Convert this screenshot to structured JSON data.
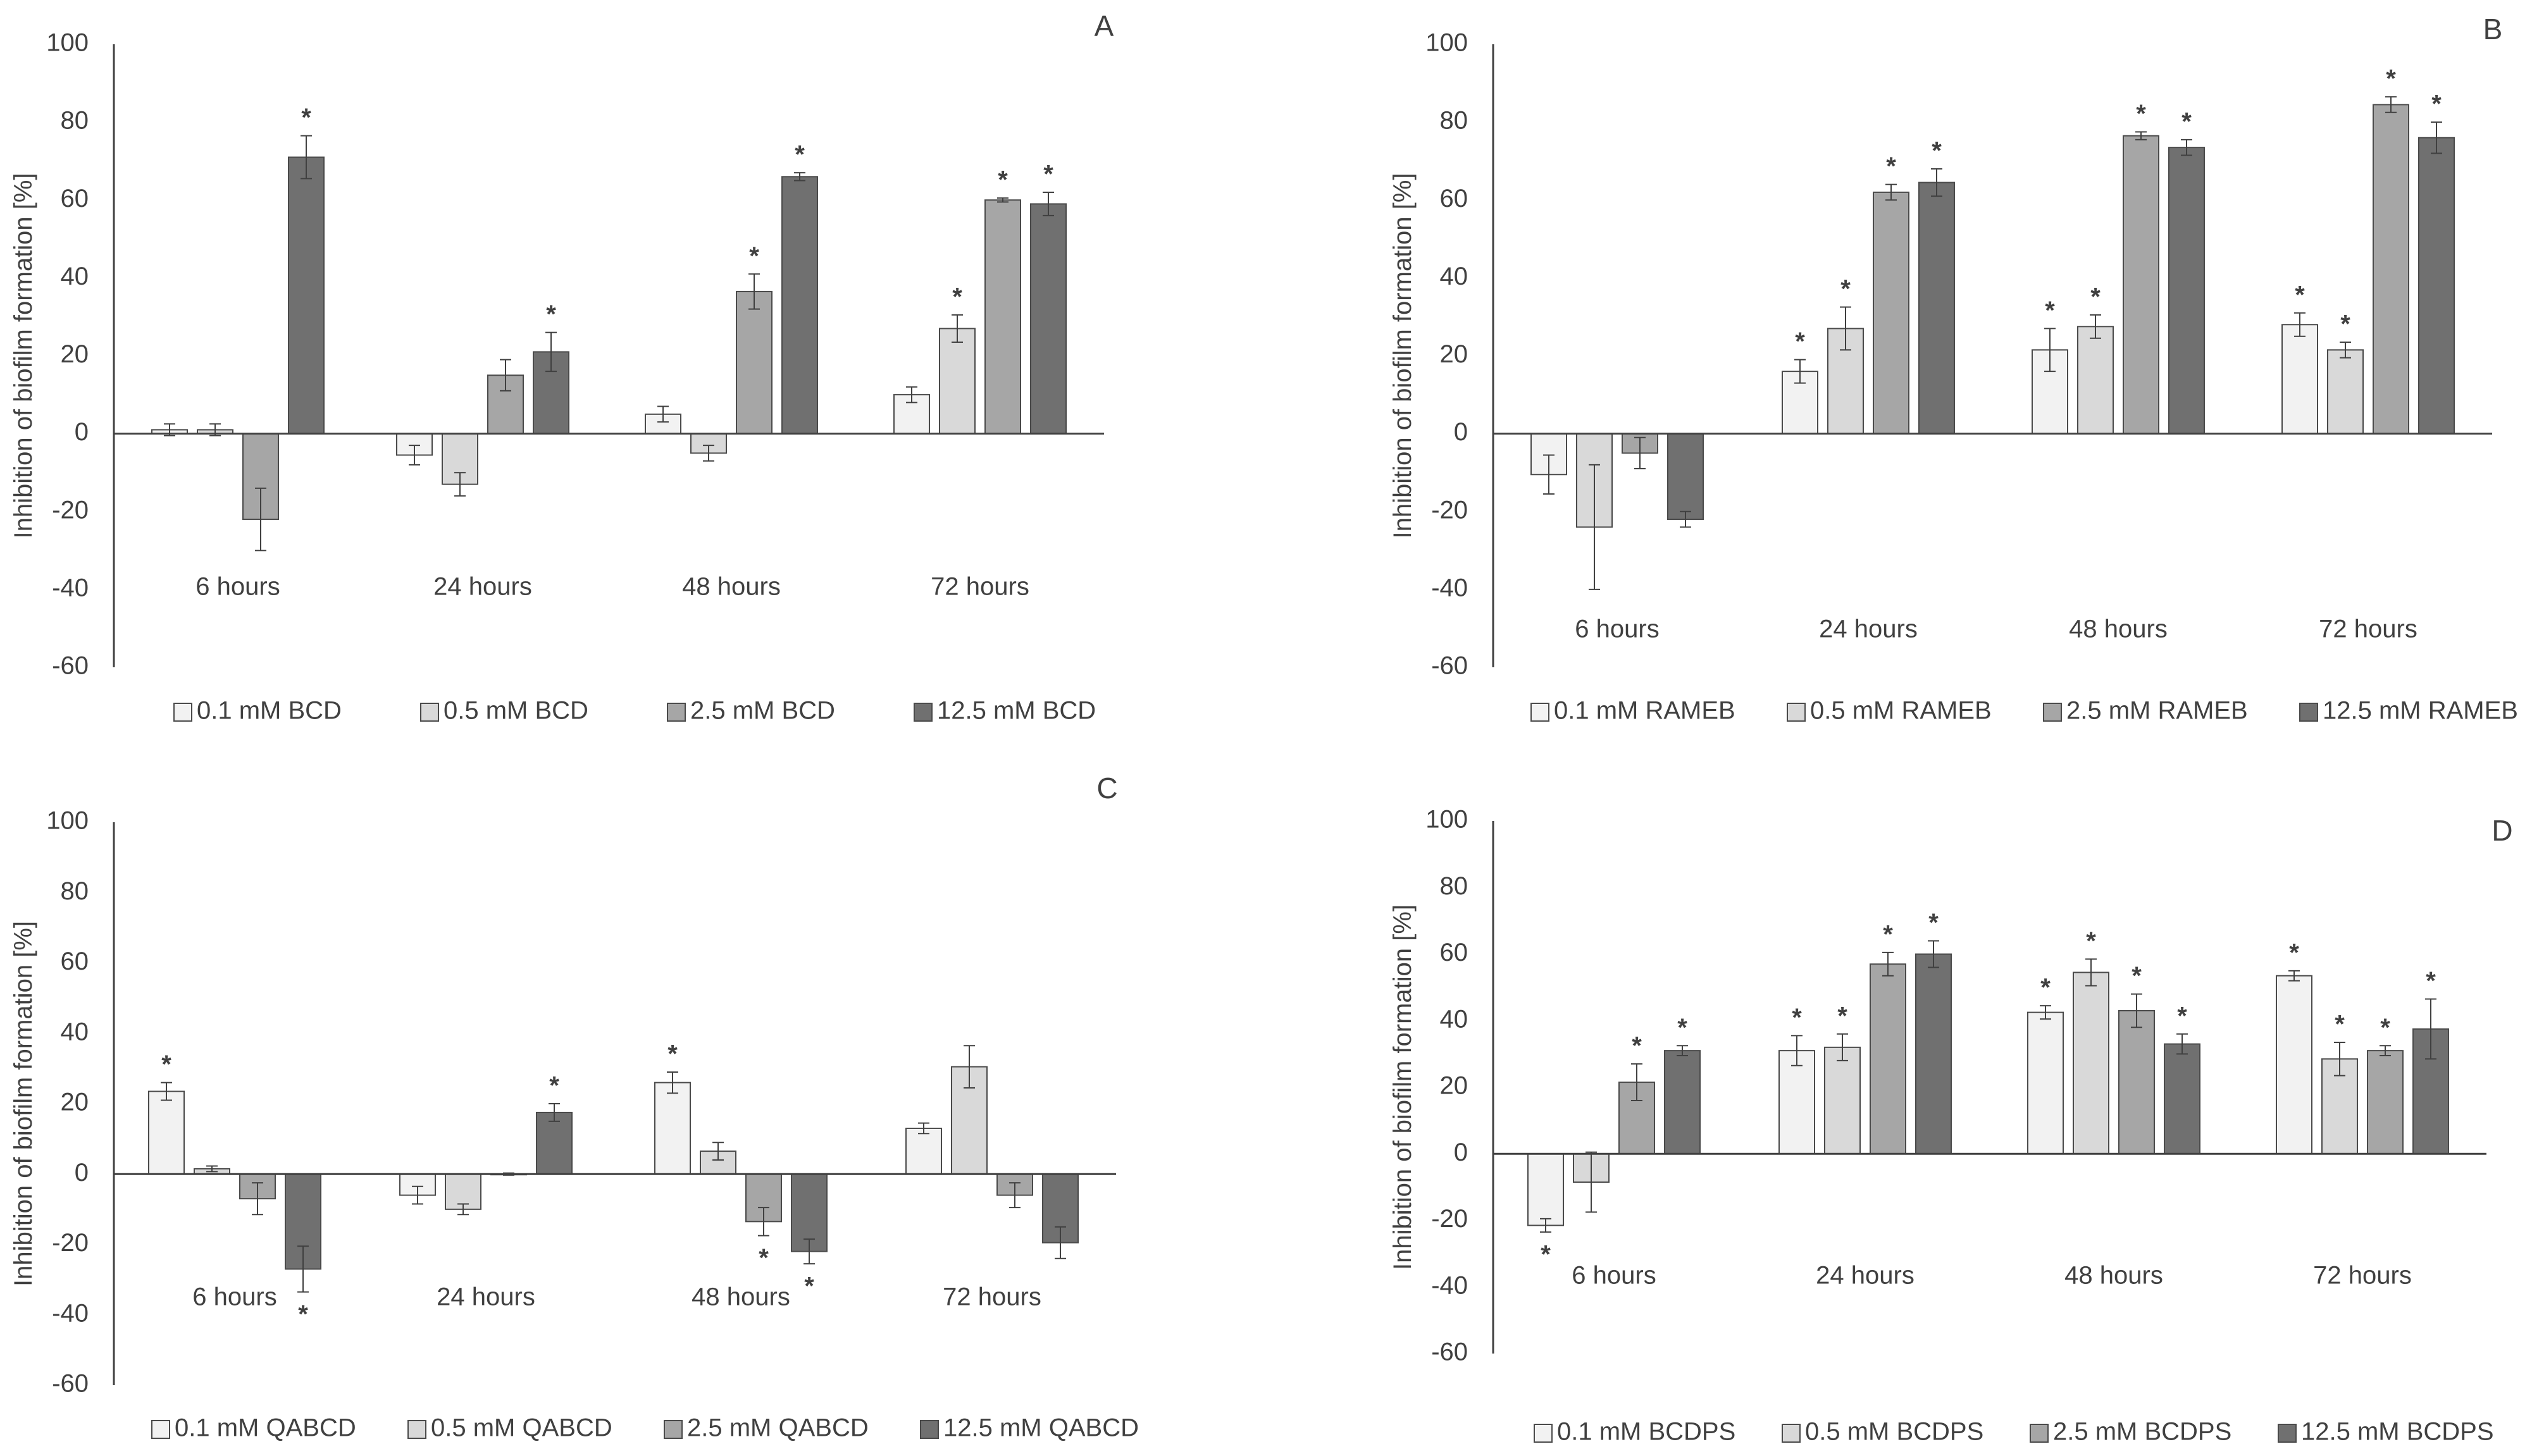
{
  "figure": {
    "colors": [
      "#f2f2f2",
      "#d9d9d9",
      "#a6a6a6",
      "#707070"
    ],
    "axis_color": "#404040",
    "error_color": "#404040"
  },
  "chart_data": [
    {
      "type": "bar",
      "panel_label": "A",
      "ylabel": "Inhibition of biofilm formation [%]",
      "ylim": [
        -60,
        100
      ],
      "yticks": [
        100,
        80,
        60,
        40,
        20,
        0,
        -20,
        -40,
        -60
      ],
      "categories": [
        "6 hours",
        "24 hours",
        "48 hours",
        "72 hours"
      ],
      "series": [
        {
          "name": "0.1 mM BCD",
          "values": [
            1,
            -5.5,
            5,
            10
          ],
          "errors": [
            1.5,
            2.5,
            2,
            2
          ],
          "sig": [
            false,
            false,
            false,
            false
          ]
        },
        {
          "name": "0.5 mM BCD",
          "values": [
            1,
            -13,
            -5,
            27
          ],
          "errors": [
            1.5,
            3,
            2,
            3.5
          ],
          "sig": [
            false,
            false,
            false,
            true
          ]
        },
        {
          "name": "2.5 mM BCD",
          "values": [
            -22,
            15,
            36.5,
            60
          ],
          "errors": [
            8,
            4,
            4.5,
            0.5
          ],
          "sig": [
            false,
            false,
            true,
            true
          ]
        },
        {
          "name": "12.5 mM BCD",
          "values": [
            71,
            21,
            66,
            59
          ],
          "errors": [
            5.5,
            5,
            1,
            3
          ],
          "sig": [
            true,
            true,
            true,
            true
          ]
        }
      ],
      "legend_position": "bottom"
    },
    {
      "type": "bar",
      "panel_label": "B",
      "ylabel": "Inhibition of biofilm formation [%]",
      "ylim": [
        -60,
        100
      ],
      "yticks": [
        100,
        80,
        60,
        40,
        20,
        0,
        -20,
        -40,
        -60
      ],
      "categories": [
        "6 hours",
        "24 hours",
        "48 hours",
        "72 hours"
      ],
      "series": [
        {
          "name": "0.1 mM RAMEB",
          "values": [
            -10.5,
            16,
            21.5,
            28
          ],
          "errors": [
            5,
            3,
            5.5,
            3
          ],
          "sig": [
            false,
            true,
            true,
            true
          ]
        },
        {
          "name": "0.5 mM RAMEB",
          "values": [
            -24,
            27,
            27.5,
            21.5
          ],
          "errors": [
            16,
            5.5,
            3,
            2
          ],
          "sig": [
            false,
            true,
            true,
            true
          ]
        },
        {
          "name": "2.5 mM RAMEB",
          "values": [
            -5,
            62,
            76.5,
            84.5
          ],
          "errors": [
            4,
            2,
            1,
            2
          ],
          "sig": [
            false,
            true,
            true,
            true
          ]
        },
        {
          "name": "12.5 mM RAMEB",
          "values": [
            -22,
            64.5,
            73.5,
            76
          ],
          "errors": [
            2,
            3.5,
            2,
            4
          ],
          "sig": [
            false,
            true,
            true,
            true
          ]
        }
      ],
      "legend_position": "bottom"
    },
    {
      "type": "bar",
      "panel_label": "C",
      "ylabel": "Inhibition of biofilm formation [%]",
      "ylim": [
        -60,
        100
      ],
      "yticks": [
        100,
        80,
        60,
        40,
        20,
        0,
        -20,
        -40,
        -60
      ],
      "categories": [
        "6 hours",
        "24 hours",
        "48 hours",
        "72 hours"
      ],
      "series": [
        {
          "name": "0.1 mM QABCD",
          "values": [
            23.5,
            -6,
            26,
            13
          ],
          "errors": [
            2.5,
            2.5,
            3,
            1.5
          ],
          "sig": [
            true,
            false,
            true,
            false
          ]
        },
        {
          "name": "0.5 mM QABCD",
          "values": [
            1.5,
            -10,
            6.5,
            30.5
          ],
          "errors": [
            0.8,
            1.5,
            2.5,
            6
          ],
          "sig": [
            false,
            false,
            false,
            false
          ]
        },
        {
          "name": "2.5 mM QABCD",
          "values": [
            -7,
            0,
            -13.5,
            -6
          ],
          "errors": [
            4.5,
            0.3,
            4,
            3.5
          ],
          "sig": [
            false,
            false,
            true,
            false
          ]
        },
        {
          "name": "12.5 mM QABCD",
          "values": [
            -27,
            17.5,
            -22,
            -19.5
          ],
          "errors": [
            6.5,
            2.5,
            3.5,
            4.5
          ],
          "sig": [
            true,
            true,
            true,
            false
          ]
        }
      ],
      "legend_position": "bottom"
    },
    {
      "type": "bar",
      "panel_label": "D",
      "ylabel": "Inhibition of biofilm formation [%]",
      "ylim": [
        -60,
        100
      ],
      "yticks": [
        100,
        80,
        60,
        40,
        20,
        0,
        -20,
        -40,
        -60
      ],
      "categories": [
        "6 hours",
        "24 hours",
        "48 hours",
        "72 hours"
      ],
      "series": [
        {
          "name": "0.1 mM BCDPS",
          "values": [
            -21.5,
            31,
            42.5,
            53.5
          ],
          "errors": [
            2,
            4.5,
            2,
            1.5
          ],
          "sig": [
            true,
            true,
            true,
            true
          ]
        },
        {
          "name": "0.5 mM BCDPS",
          "values": [
            -8.5,
            32,
            54.5,
            28.5
          ],
          "errors": [
            9,
            4,
            4,
            5
          ],
          "sig": [
            false,
            true,
            true,
            true
          ]
        },
        {
          "name": "2.5 mM BCDPS",
          "values": [
            21.5,
            57,
            43,
            31
          ],
          "errors": [
            5.5,
            3.5,
            5,
            1.5
          ],
          "sig": [
            true,
            true,
            true,
            true
          ]
        },
        {
          "name": "12.5 mM BCDPS",
          "values": [
            31,
            60,
            33,
            37.5
          ],
          "errors": [
            1.5,
            4,
            3,
            9
          ],
          "sig": [
            true,
            true,
            true,
            true
          ]
        }
      ],
      "legend_position": "bottom"
    }
  ]
}
